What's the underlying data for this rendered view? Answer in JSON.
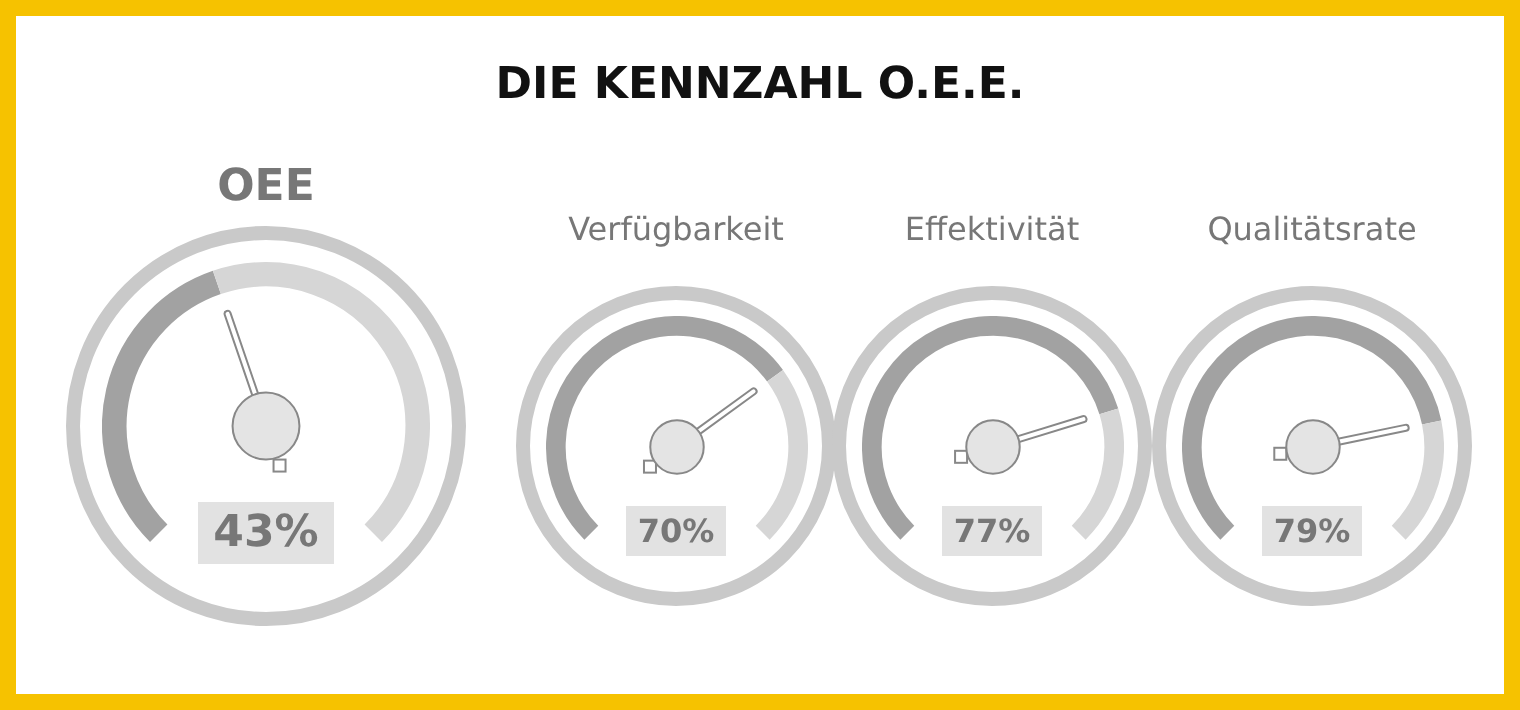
{
  "chart_data": [
    {
      "type": "other",
      "title": "DIE KENNZAHL O.E.E."
    },
    {
      "type": "other",
      "title": "OEE",
      "values": [
        43
      ],
      "value_labels": [
        "43%"
      ]
    },
    {
      "type": "other",
      "title": "Verfügbarkeit",
      "values": [
        70
      ],
      "value_labels": [
        "70%"
      ]
    },
    {
      "type": "other",
      "title": "Effektivität",
      "values": [
        77
      ],
      "value_labels": [
        "77%"
      ]
    },
    {
      "type": "other",
      "title": "Qualitätsrate",
      "values": [
        79
      ],
      "value_labels": [
        "79%"
      ]
    }
  ]
}
